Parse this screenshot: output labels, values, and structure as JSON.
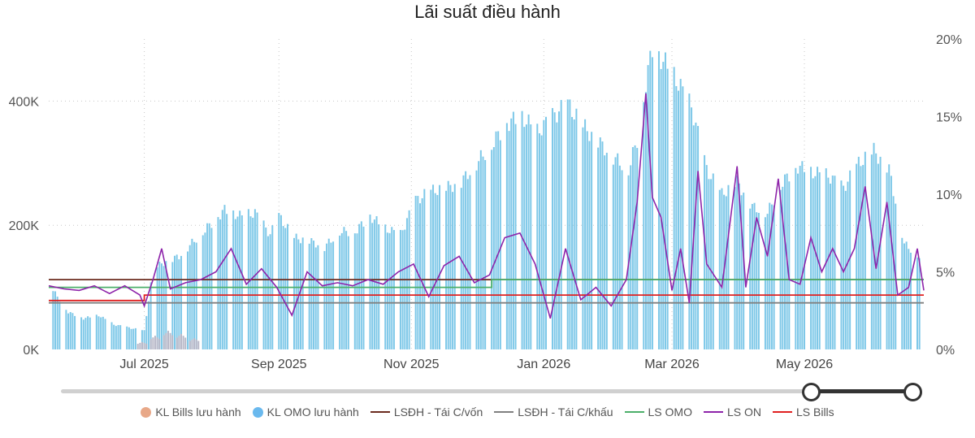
{
  "title": "Lãi suất điều hành",
  "chart_data": {
    "type": "bar+line",
    "title": "Lãi suất điều hành",
    "y_left": {
      "ticks": [
        "0K",
        "200K",
        "400K"
      ],
      "ylim": [
        0,
        500000
      ]
    },
    "y_right": {
      "ticks": [
        "0%",
        "5%",
        "10%",
        "15%",
        "20%"
      ],
      "ylim": [
        0,
        20
      ]
    },
    "x": {
      "range": [
        "2025-05-18",
        "2026-06-25"
      ],
      "ticks": [
        {
          "date": "2025-07-01",
          "label": "Jul 2025"
        },
        {
          "date": "2025-09-01",
          "label": "Sep 2025"
        },
        {
          "date": "2025-11-01",
          "label": "Nov 2025"
        },
        {
          "date": "2026-01-01",
          "label": "Jan 2026"
        },
        {
          "date": "2026-03-01",
          "label": "Mar 2026"
        },
        {
          "date": "2026-05-01",
          "label": "May 2026"
        }
      ]
    },
    "grid": true,
    "legend_position": "bottom",
    "bars_omo": {
      "name": "KL OMO lưu hành",
      "color": "#7ec8e8",
      "points": [
        [
          "2025-05-20",
          95000
        ],
        [
          "2025-05-27",
          60000
        ],
        [
          "2025-06-03",
          50000
        ],
        [
          "2025-06-10",
          55000
        ],
        [
          "2025-06-17",
          40000
        ],
        [
          "2025-06-24",
          35000
        ],
        [
          "2025-07-01",
          30000
        ],
        [
          "2025-07-05",
          130000
        ],
        [
          "2025-07-10",
          140000
        ],
        [
          "2025-07-17",
          150000
        ],
        [
          "2025-07-24",
          175000
        ],
        [
          "2025-07-31",
          200000
        ],
        [
          "2025-08-07",
          225000
        ],
        [
          "2025-08-14",
          215000
        ],
        [
          "2025-08-21",
          220000
        ],
        [
          "2025-08-28",
          185000
        ],
        [
          "2025-09-01",
          215000
        ],
        [
          "2025-09-08",
          180000
        ],
        [
          "2025-09-15",
          175000
        ],
        [
          "2025-09-22",
          165000
        ],
        [
          "2025-09-29",
          190000
        ],
        [
          "2025-10-06",
          190000
        ],
        [
          "2025-10-13",
          215000
        ],
        [
          "2025-10-20",
          195000
        ],
        [
          "2025-10-27",
          185000
        ],
        [
          "2025-11-03",
          240000
        ],
        [
          "2025-11-10",
          255000
        ],
        [
          "2025-11-17",
          260000
        ],
        [
          "2025-11-24",
          270000
        ],
        [
          "2025-12-01",
          300000
        ],
        [
          "2025-12-08",
          330000
        ],
        [
          "2025-12-15",
          365000
        ],
        [
          "2025-12-22",
          375000
        ],
        [
          "2025-12-29",
          350000
        ],
        [
          "2026-01-05",
          375000
        ],
        [
          "2026-01-12",
          395000
        ],
        [
          "2026-01-19",
          360000
        ],
        [
          "2026-01-26",
          335000
        ],
        [
          "2026-02-02",
          310000
        ],
        [
          "2026-02-09",
          290000
        ],
        [
          "2026-02-14",
          350000
        ],
        [
          "2026-02-17",
          430000
        ],
        [
          "2026-02-20",
          485000
        ],
        [
          "2026-02-24",
          470000
        ],
        [
          "2026-03-03",
          435000
        ],
        [
          "2026-03-10",
          390000
        ],
        [
          "2026-03-17",
          290000
        ],
        [
          "2026-03-24",
          250000
        ],
        [
          "2026-03-31",
          270000
        ],
        [
          "2026-04-07",
          230000
        ],
        [
          "2026-04-14",
          220000
        ],
        [
          "2026-04-21",
          270000
        ],
        [
          "2026-04-28",
          295000
        ],
        [
          "2026-05-05",
          285000
        ],
        [
          "2026-05-12",
          280000
        ],
        [
          "2026-05-19",
          260000
        ],
        [
          "2026-05-26",
          300000
        ],
        [
          "2026-06-02",
          320000
        ],
        [
          "2026-06-09",
          290000
        ],
        [
          "2026-06-16",
          170000
        ],
        [
          "2026-06-23",
          150000
        ]
      ]
    },
    "bars_bills": {
      "name": "KL Bills lưu hành",
      "color": "#e8a888",
      "points": [
        [
          "2025-06-30",
          12000
        ],
        [
          "2025-07-06",
          22000
        ],
        [
          "2025-07-12",
          30000
        ],
        [
          "2025-07-18",
          25000
        ],
        [
          "2025-07-24",
          18000
        ]
      ]
    },
    "series": [
      {
        "name": "LSĐH - Tái C/vốn",
        "color": "#6b2b1e",
        "points": [
          [
            "2025-05-18",
            4.5
          ],
          [
            "2026-06-25",
            4.5
          ]
        ]
      },
      {
        "name": "LSĐH - Tái C/khấu",
        "color": "#808080",
        "points": [
          [
            "2025-05-18",
            3.0
          ],
          [
            "2026-06-25",
            3.0
          ]
        ]
      },
      {
        "name": "LS OMO",
        "color": "#4caf6a",
        "points": [
          [
            "2025-05-18",
            4.0
          ],
          [
            "2025-12-08",
            4.0
          ],
          [
            "2025-12-08",
            4.5
          ],
          [
            "2026-06-25",
            4.5
          ]
        ]
      },
      {
        "name": "LS Bills",
        "color": "#e02020",
        "points": [
          [
            "2025-05-18",
            3.15
          ],
          [
            "2025-07-01",
            3.15
          ],
          [
            "2025-07-01",
            3.5
          ],
          [
            "2026-06-25",
            3.5
          ]
        ]
      },
      {
        "name": "LS ON",
        "color": "#8e24aa",
        "points": [
          [
            "2025-05-18",
            4.1
          ],
          [
            "2025-05-25",
            3.9
          ],
          [
            "2025-06-01",
            3.8
          ],
          [
            "2025-06-08",
            4.1
          ],
          [
            "2025-06-15",
            3.6
          ],
          [
            "2025-06-22",
            4.1
          ],
          [
            "2025-06-29",
            3.5
          ],
          [
            "2025-07-01",
            2.8
          ],
          [
            "2025-07-05",
            4.5
          ],
          [
            "2025-07-09",
            6.5
          ],
          [
            "2025-07-13",
            3.9
          ],
          [
            "2025-07-20",
            4.3
          ],
          [
            "2025-07-27",
            4.5
          ],
          [
            "2025-08-03",
            5.0
          ],
          [
            "2025-08-10",
            6.5
          ],
          [
            "2025-08-17",
            4.2
          ],
          [
            "2025-08-24",
            5.2
          ],
          [
            "2025-08-31",
            4.0
          ],
          [
            "2025-09-07",
            2.2
          ],
          [
            "2025-09-14",
            5.0
          ],
          [
            "2025-09-21",
            4.1
          ],
          [
            "2025-09-28",
            4.3
          ],
          [
            "2025-10-05",
            4.1
          ],
          [
            "2025-10-12",
            4.5
          ],
          [
            "2025-10-19",
            4.2
          ],
          [
            "2025-10-26",
            5.0
          ],
          [
            "2025-11-02",
            5.5
          ],
          [
            "2025-11-09",
            3.4
          ],
          [
            "2025-11-16",
            5.4
          ],
          [
            "2025-11-23",
            6.0
          ],
          [
            "2025-11-30",
            4.3
          ],
          [
            "2025-12-07",
            4.8
          ],
          [
            "2025-12-14",
            7.2
          ],
          [
            "2025-12-21",
            7.5
          ],
          [
            "2025-12-28",
            5.5
          ],
          [
            "2026-01-04",
            2.0
          ],
          [
            "2026-01-11",
            6.5
          ],
          [
            "2026-01-18",
            3.2
          ],
          [
            "2026-01-25",
            4.0
          ],
          [
            "2026-02-01",
            2.8
          ],
          [
            "2026-02-08",
            4.5
          ],
          [
            "2026-02-13",
            9.5
          ],
          [
            "2026-02-17",
            16.5
          ],
          [
            "2026-02-20",
            9.8
          ],
          [
            "2026-02-24",
            8.5
          ],
          [
            "2026-03-01",
            3.8
          ],
          [
            "2026-03-05",
            6.5
          ],
          [
            "2026-03-09",
            3.0
          ],
          [
            "2026-03-13",
            11.5
          ],
          [
            "2026-03-17",
            5.5
          ],
          [
            "2026-03-24",
            4.0
          ],
          [
            "2026-03-31",
            11.8
          ],
          [
            "2026-04-04",
            4.0
          ],
          [
            "2026-04-09",
            8.5
          ],
          [
            "2026-04-14",
            6.0
          ],
          [
            "2026-04-19",
            11.0
          ],
          [
            "2026-04-24",
            4.5
          ],
          [
            "2026-04-29",
            4.2
          ],
          [
            "2026-05-04",
            7.2
          ],
          [
            "2026-05-09",
            5.0
          ],
          [
            "2026-05-14",
            6.5
          ],
          [
            "2026-05-19",
            5.0
          ],
          [
            "2026-05-24",
            6.5
          ],
          [
            "2026-05-29",
            10.5
          ],
          [
            "2026-06-03",
            5.2
          ],
          [
            "2026-06-08",
            9.5
          ],
          [
            "2026-06-13",
            3.5
          ],
          [
            "2026-06-18",
            4.0
          ],
          [
            "2026-06-22",
            6.5
          ],
          [
            "2026-06-25",
            3.8
          ]
        ]
      }
    ]
  },
  "legend": [
    {
      "label": "KL Bills lưu hành",
      "color": "#e8a888",
      "shape": "dot"
    },
    {
      "label": "KL OMO lưu hành",
      "color": "#6ab9ee",
      "shape": "dot"
    },
    {
      "label": "LSĐH - Tái C/vốn",
      "color": "#6b2b1e",
      "shape": "line"
    },
    {
      "label": "LSĐH - Tái C/khấu",
      "color": "#808080",
      "shape": "line"
    },
    {
      "label": "LS OMO",
      "color": "#4caf6a",
      "shape": "line"
    },
    {
      "label": "LS ON",
      "color": "#8e24aa",
      "shape": "line"
    },
    {
      "label": "LS Bills",
      "color": "#e02020",
      "shape": "line"
    }
  ],
  "slider": {
    "range_start": "2026-05",
    "range_end": "2026-06"
  }
}
